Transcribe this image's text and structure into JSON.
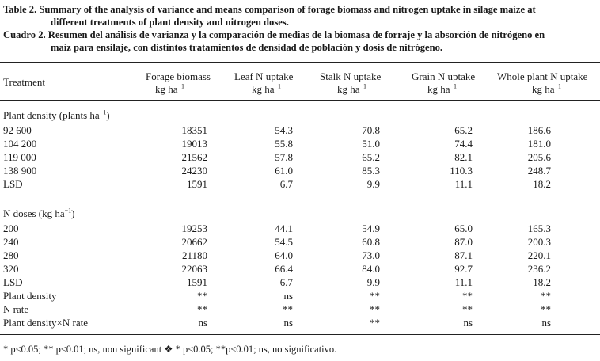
{
  "caption": {
    "line1": "Table 2. Summary of the analysis of variance and means comparison of  forage biomass and nitrogen uptake in silage maize at",
    "line2": "different treatments of plant density and nitrogen doses.",
    "line3": "Cuadro 2. Resumen del análisis de varianza y la comparación de medias de la biomasa de forraje y la absorción de nitrógeno en",
    "line4": "maíz para ensilaje, con distintos tratamientos de densidad de población y dosis de nitrógeno."
  },
  "headers": {
    "treatment": "Treatment",
    "forage": {
      "line1": "Forage biomass",
      "line2": "kg ha",
      "sup": "−1"
    },
    "leaf": {
      "line1": "Leaf N   uptake",
      "line2": "kg ha",
      "sup": "−1"
    },
    "stalk": {
      "line1": "Stalk N   uptake",
      "line2": "kg ha",
      "sup": "−1"
    },
    "grain": {
      "line1": "Grain N uptake",
      "line2": "kg ha",
      "sup": "−1"
    },
    "whole": {
      "line1": "Whole plant N uptake",
      "line2": "kg ha",
      "sup": "−1"
    }
  },
  "section1": {
    "title": "Plant density (plants ha",
    "sup": "−1",
    "close": ")"
  },
  "section2": {
    "title": "N doses (kg ha",
    "sup": "−1",
    "close": ")"
  },
  "rows1": [
    [
      "92 600",
      "18351",
      "54.3",
      "70.8",
      "65.2",
      "186.6"
    ],
    [
      "104 200",
      "19013",
      "55.8",
      "51.0",
      "74.4",
      "181.0"
    ],
    [
      "119 000",
      "21562",
      "57.8",
      "65.2",
      "82.1",
      "205.6"
    ],
    [
      "138 900",
      "24230",
      "61.0",
      "85.3",
      "110.3",
      "248.7"
    ],
    [
      "LSD",
      "1591",
      "6.7",
      "9.9",
      "11.1",
      "18.2"
    ]
  ],
  "rows2": [
    [
      "200",
      "19253",
      "44.1",
      "54.9",
      "65.0",
      "165.3"
    ],
    [
      "240",
      "20662",
      "54.5",
      "60.8",
      "87.0",
      "200.3"
    ],
    [
      "280",
      "21180",
      "64.0",
      "73.0",
      "87.1",
      "220.1"
    ],
    [
      "320",
      "22063",
      "66.4",
      "84.0",
      "92.7",
      "236.2"
    ],
    [
      "LSD",
      "1591",
      "6.7",
      "9.9",
      "11.1",
      "18.2"
    ],
    [
      "Plant density",
      "**",
      "ns",
      "**",
      "**",
      "**"
    ],
    [
      "N rate",
      "**",
      "**",
      "**",
      "**",
      "**"
    ],
    [
      "Plant density×N rate",
      "ns",
      "ns",
      "**",
      "ns",
      "ns"
    ]
  ],
  "footer": "* p≤0.05; ** p≤0.01; ns, non significant ❖ * p≤0.05; **p≤0.01; ns, no significativo."
}
